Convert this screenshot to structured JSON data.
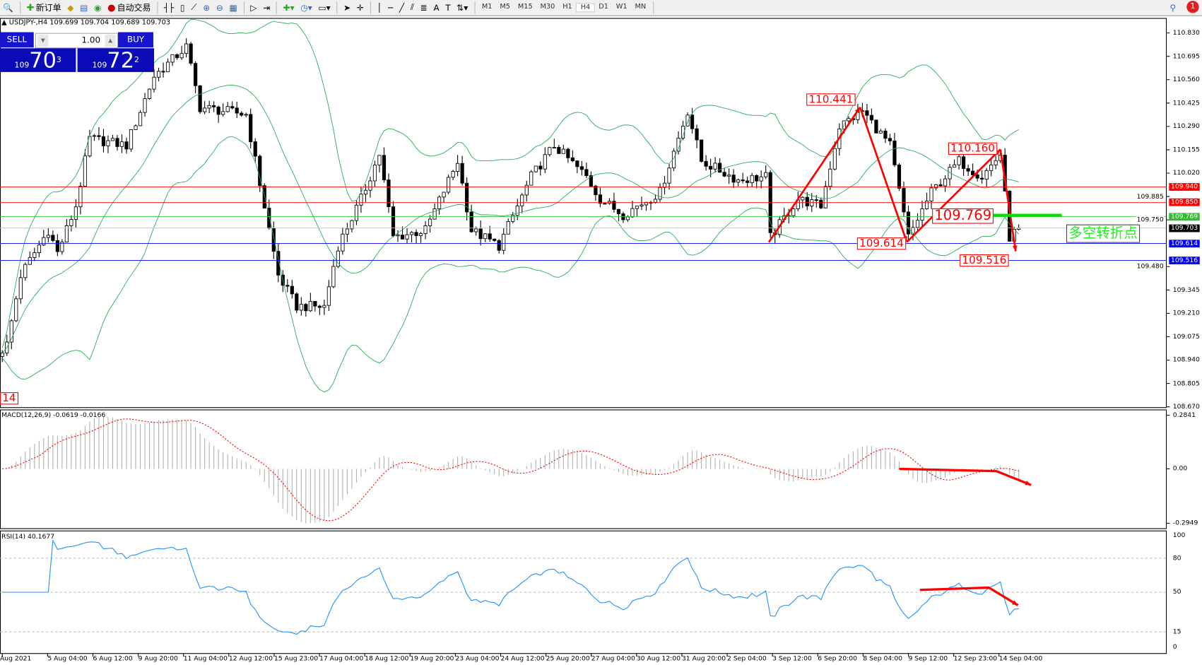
{
  "toolbar": {
    "new_order": "新订单",
    "auto_trading": "自动交易",
    "timeframes": [
      "M1",
      "M5",
      "M15",
      "M30",
      "H1",
      "H4",
      "D1",
      "W1",
      "MN"
    ],
    "active_timeframe": "H4",
    "notification_count": "1"
  },
  "chart": {
    "header": "USDJPY-,H4  109.699 109.704 109.689 109.703",
    "trade_panel": {
      "sell_label": "SELL",
      "buy_label": "BUY",
      "lot": "1.00",
      "sell_prefix": "109",
      "sell_big": "70",
      "sell_sup": "3",
      "buy_prefix": "109",
      "buy_big": "72",
      "buy_sup": "2"
    },
    "price_axis": [
      "110.830",
      "110.695",
      "110.560",
      "110.425",
      "110.290",
      "110.155",
      "110.020",
      "109.885",
      "109.750",
      "109.480",
      "109.345",
      "109.210",
      "109.075",
      "108.940",
      "108.805",
      "108.670"
    ],
    "levels": [
      {
        "price": "109.940",
        "color": "#ff0000"
      },
      {
        "price": "109.850",
        "color": "#ff0000"
      },
      {
        "price": "109.769",
        "color": "#33cc33"
      },
      {
        "price": "109.703",
        "color": "#000000"
      },
      {
        "price": "109.614",
        "color": "#0000ff"
      },
      {
        "price": "109.516",
        "color": "#0000ff"
      }
    ],
    "annotations": {
      "high1": "110.441",
      "low1": "109.614",
      "high2": "110.160",
      "pivot": "109.769",
      "low2": "109.516",
      "left_cut": "14",
      "text_box": "多空转折点"
    },
    "price_path": [
      [
        0,
        109.0
      ],
      [
        1,
        109.03
      ],
      [
        4,
        109.43
      ],
      [
        10,
        109.69
      ],
      [
        12,
        109.56
      ],
      [
        16,
        109.83
      ],
      [
        19,
        110.22
      ],
      [
        27,
        110.18
      ],
      [
        33,
        110.58
      ],
      [
        40,
        110.75
      ],
      [
        43,
        110.4
      ],
      [
        53,
        110.36
      ],
      [
        56,
        109.96
      ],
      [
        60,
        109.43
      ],
      [
        64,
        109.25
      ],
      [
        70,
        109.25
      ],
      [
        73,
        109.6
      ],
      [
        78,
        109.87
      ],
      [
        82,
        110.13
      ],
      [
        85,
        109.65
      ],
      [
        92,
        109.69
      ],
      [
        99,
        110.09
      ],
      [
        102,
        109.69
      ],
      [
        108,
        109.6
      ],
      [
        115,
        110.0
      ],
      [
        120,
        110.18
      ],
      [
        127,
        110.0
      ],
      [
        130,
        109.87
      ],
      [
        135,
        109.78
      ],
      [
        143,
        109.91
      ],
      [
        149,
        110.38
      ],
      [
        152,
        110.09
      ],
      [
        160,
        109.98
      ],
      [
        166,
        110.0
      ],
      [
        167,
        109.65
      ],
      [
        173,
        109.87
      ],
      [
        178,
        109.83
      ],
      [
        182,
        110.29
      ],
      [
        187,
        110.38
      ],
      [
        193,
        110.18
      ],
      [
        197,
        109.65
      ],
      [
        202,
        109.91
      ],
      [
        208,
        110.09
      ],
      [
        213,
        110.0
      ],
      [
        217,
        110.13
      ],
      [
        219,
        109.65
      ],
      [
        221,
        109.703
      ]
    ],
    "colors": {
      "bands": "#22aa55",
      "macd_hist": "#b0b0b0",
      "macd_signal": "#ff0000",
      "rsi": "#1e90ff",
      "arrows": "#ff0000"
    }
  },
  "macd": {
    "label": "MACD(12,26,9) -0.0619 -0.0166",
    "axis": [
      "0.2841",
      "0.00",
      "-0.2949"
    ],
    "range": [
      -0.2949,
      0.2841
    ]
  },
  "rsi": {
    "label": "RSI(14) 40.1677",
    "axis": [
      "100",
      "80",
      "50",
      "15",
      "0"
    ],
    "levels": [
      80,
      50,
      15
    ]
  },
  "time_axis": [
    "Aug 2021",
    "5 Aug 04:00",
    "6 Aug 12:00",
    "9 Aug 20:00",
    "11 Aug 04:00",
    "12 Aug 12:00",
    "15 Aug 23:00",
    "17 Aug 04:00",
    "18 Aug 12:00",
    "19 Aug 20:00",
    "23 Aug 04:00",
    "24 Aug 12:00",
    "25 Aug 20:00",
    "27 Aug 04:00",
    "30 Aug 12:00",
    "31 Aug 20:00",
    "2 Sep 04:00",
    "3 Sep 12:00",
    "6 Sep 20:00",
    "8 Sep 04:00",
    "9 Sep 12:00",
    "12 Sep 23:00",
    "14 Sep 04:00"
  ]
}
